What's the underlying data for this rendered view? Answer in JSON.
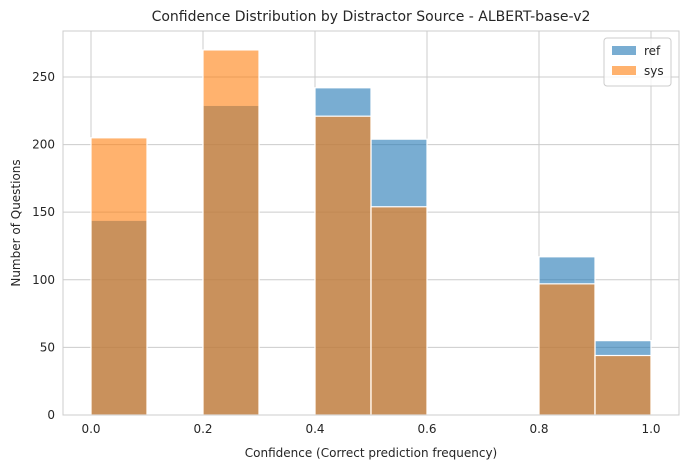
{
  "chart_data": {
    "type": "bar",
    "title": "Confidence Distribution by Distractor Source - ALBERT-base-v2",
    "xlabel": "Confidence (Correct prediction frequency)",
    "ylabel": "Number of Questions",
    "xlim": [
      -0.05,
      1.05
    ],
    "ylim": [
      0,
      284
    ],
    "xticks": [
      0.0,
      0.2,
      0.4,
      0.6,
      0.8,
      1.0
    ],
    "xtick_labels": [
      "0.0",
      "0.2",
      "0.4",
      "0.6",
      "0.8",
      "1.0"
    ],
    "yticks": [
      0,
      50,
      100,
      150,
      200,
      250
    ],
    "ytick_labels": [
      "0",
      "50",
      "100",
      "150",
      "200",
      "250"
    ],
    "grid": true,
    "legend_position": "top-right",
    "bins": [
      [
        0.0,
        0.1
      ],
      [
        0.2,
        0.3
      ],
      [
        0.4,
        0.5
      ],
      [
        0.5,
        0.6
      ],
      [
        0.8,
        0.9
      ],
      [
        0.9,
        1.0
      ]
    ],
    "series": [
      {
        "name": "ref",
        "color": "#1f77b4",
        "values": [
          144,
          229,
          242,
          204,
          117,
          55
        ]
      },
      {
        "name": "sys",
        "color": "#ff7f0e",
        "values": [
          205,
          270,
          221,
          154,
          97,
          44
        ]
      }
    ]
  }
}
